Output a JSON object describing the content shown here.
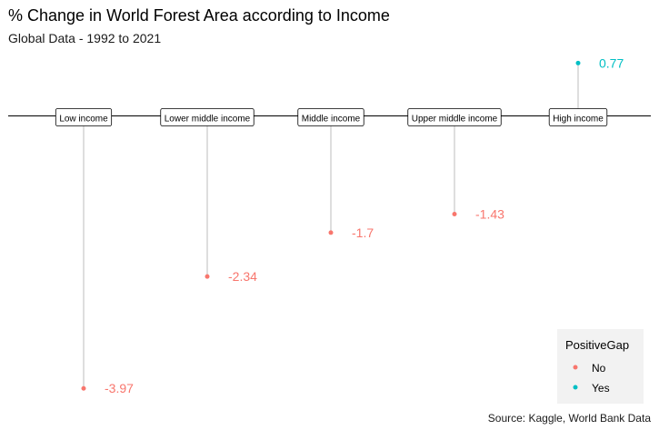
{
  "chart_data": {
    "type": "lollipop",
    "title": "% Change in World Forest Area according to Income",
    "subtitle": "Global Data - 1992 to 2021",
    "caption": "Source: Kaggle, World Bank Data",
    "categories": [
      "Low income",
      "Lower middle income",
      "Middle income",
      "Upper middle income",
      "High income"
    ],
    "values": [
      -3.97,
      -2.34,
      -1.7,
      -1.43,
      0.77
    ],
    "value_labels": [
      "-3.97",
      "-2.34",
      "-1.7",
      "-1.43",
      "0.77"
    ],
    "positive_gap": [
      "No",
      "No",
      "No",
      "No",
      "Yes"
    ],
    "ylim": [
      -4.2,
      1.4
    ],
    "grid": false,
    "legend": {
      "title": "PositiveGap",
      "placement": "bottom-right",
      "items": [
        {
          "label": "No",
          "color": "#F8766D"
        },
        {
          "label": "Yes",
          "color": "#00BFC4"
        }
      ]
    },
    "colors": {
      "No": "#F8766D",
      "Yes": "#00BFC4"
    }
  }
}
